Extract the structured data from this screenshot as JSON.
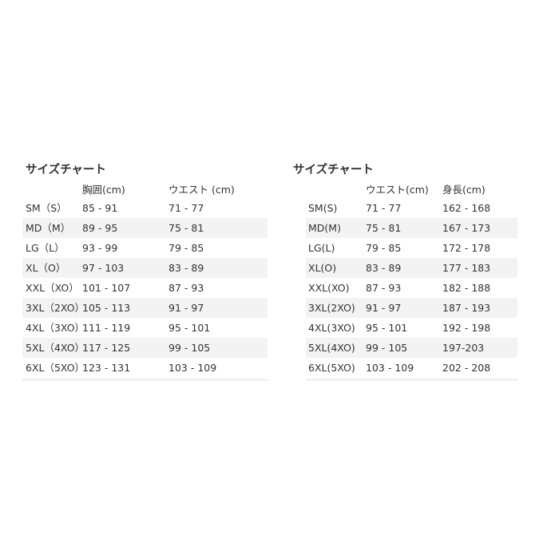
{
  "left": {
    "title": "サイズチャート",
    "headers": [
      "",
      "胸囲(cm)",
      "ウエスト (cm)"
    ],
    "rows": [
      [
        "SM（S）",
        "85 - 91",
        "71 - 77"
      ],
      [
        "MD（M）",
        "89 - 95",
        "75 - 81"
      ],
      [
        "LG（L）",
        "93 - 99",
        "79 - 85"
      ],
      [
        "XL（O）",
        "97 - 103",
        "83 - 89"
      ],
      [
        "XXL（XO）",
        "101 - 107",
        "87 - 93"
      ],
      [
        "3XL（2XO）",
        "105 - 113",
        "91 - 97"
      ],
      [
        "4XL（3XO）",
        "111 - 119",
        "95 - 101"
      ],
      [
        "5XL（4XO）",
        "117 - 125",
        "99 - 105"
      ],
      [
        "6XL（5XO）",
        "123 - 131",
        "103 - 109"
      ]
    ]
  },
  "right": {
    "title": "サイズチャート",
    "headers": [
      "",
      "ウエスト(cm)",
      "身長(cm)"
    ],
    "rows": [
      [
        "SM(S)",
        "71 - 77",
        "162 - 168"
      ],
      [
        "MD(M)",
        "75 - 81",
        "167 - 173"
      ],
      [
        "LG(L)",
        "79 - 85",
        "172 - 178"
      ],
      [
        "XL(O)",
        "83 - 89",
        "177 - 183"
      ],
      [
        "XXL(XO)",
        "87 - 93",
        "182 - 188"
      ],
      [
        "3XL(2XO)",
        "91 - 97",
        "187 - 193"
      ],
      [
        "4XL(3XO)",
        "95 - 101",
        "192 - 198"
      ],
      [
        "5XL(4XO)",
        "99 - 105",
        "197-203"
      ],
      [
        "6XL(5XO)",
        "103 - 109",
        "202 - 208"
      ]
    ]
  }
}
